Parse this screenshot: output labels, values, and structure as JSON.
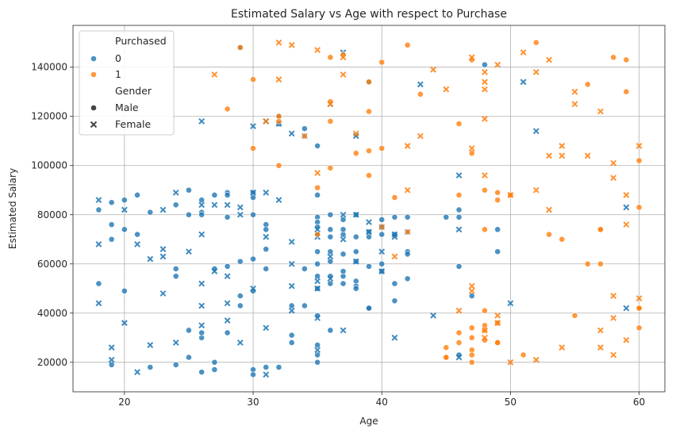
{
  "chart_data": {
    "type": "scatter",
    "title": "Estimated Salary vs Age with respect to Purchase",
    "xlabel": "Age",
    "ylabel": "Estimated Salary",
    "xlim": [
      16,
      62
    ],
    "ylim": [
      8000,
      157000
    ],
    "x_ticks": [
      20,
      30,
      40,
      50,
      60
    ],
    "y_ticks": [
      20000,
      40000,
      60000,
      80000,
      100000,
      120000,
      140000
    ],
    "grid": true,
    "legend_position": "top-left",
    "legend": {
      "hue_title": "Purchased",
      "hue_labels": [
        "0",
        "1"
      ],
      "style_title": "Gender",
      "style_labels": [
        "Male",
        "Female"
      ]
    },
    "colors": {
      "0": "#1f77b4",
      "1": "#ff7f0e"
    },
    "series": [
      {
        "name": "0",
        "marker": "o",
        "x": [
          18,
          18,
          19,
          19,
          19,
          19,
          20,
          20,
          20,
          21,
          21,
          22,
          22,
          24,
          24,
          24,
          24,
          25,
          25,
          25,
          25,
          26,
          26,
          26,
          26,
          26,
          26,
          27,
          27,
          27,
          27,
          28,
          28,
          28,
          28,
          28,
          29,
          29,
          29,
          29,
          30,
          30,
          30,
          30,
          30,
          30,
          30,
          31,
          31,
          31,
          31,
          31,
          32,
          32,
          32,
          33,
          33,
          33,
          34,
          34,
          34,
          35,
          35,
          35,
          35,
          35,
          35,
          35,
          35,
          35,
          35,
          35,
          35,
          35,
          35,
          36,
          36,
          36,
          36,
          36,
          36,
          36,
          36,
          37,
          37,
          37,
          37,
          37,
          37,
          37,
          38,
          38,
          38,
          38,
          38,
          38,
          38,
          39,
          39,
          39,
          39,
          39,
          39,
          40,
          40,
          40,
          40,
          40,
          41,
          41,
          41,
          41,
          42,
          42,
          42,
          42,
          45,
          46,
          46,
          46,
          46,
          47,
          48,
          49,
          49
        ],
        "y": [
          52000,
          82000,
          85000,
          70000,
          76000,
          19000,
          86000,
          74000,
          49000,
          72000,
          88000,
          18000,
          81000,
          58000,
          55000,
          84000,
          19000,
          90000,
          80000,
          33000,
          22000,
          86000,
          81000,
          80000,
          30000,
          16000,
          32000,
          88000,
          17000,
          20000,
          58000,
          89000,
          88000,
          79000,
          59000,
          32000,
          148000,
          61000,
          47000,
          43000,
          89000,
          87000,
          80000,
          62000,
          49000,
          17000,
          15000,
          76000,
          74000,
          66000,
          58000,
          18000,
          117000,
          120000,
          18000,
          43000,
          31000,
          28000,
          115000,
          58000,
          43000,
          108000,
          88000,
          79000,
          77000,
          75000,
          72000,
          65000,
          60000,
          55000,
          50000,
          39000,
          27000,
          23000,
          20000,
          71000,
          65000,
          61000,
          55000,
          52000,
          33000,
          74000,
          80000,
          78000,
          72000,
          74000,
          64000,
          55000,
          52000,
          57000,
          80000,
          71000,
          65000,
          61000,
          53000,
          51000,
          50000,
          134000,
          73000,
          71000,
          59000,
          42000,
          42000,
          78000,
          75000,
          72000,
          57000,
          60000,
          79000,
          72000,
          52000,
          45000,
          79000,
          65000,
          64000,
          54000,
          79000,
          82000,
          79000,
          59000,
          23000,
          47000,
          141000,
          74000,
          65000
        ]
      },
      {
        "name": "0",
        "marker": "x",
        "x": [
          18,
          18,
          18,
          19,
          19,
          20,
          20,
          21,
          21,
          22,
          22,
          23,
          23,
          23,
          23,
          24,
          24,
          25,
          26,
          26,
          26,
          26,
          26,
          26,
          27,
          27,
          28,
          28,
          28,
          28,
          29,
          29,
          29,
          30,
          30,
          30,
          31,
          31,
          31,
          31,
          31,
          32,
          32,
          33,
          33,
          33,
          33,
          33,
          34,
          35,
          35,
          35,
          35,
          35,
          35,
          36,
          36,
          36,
          37,
          37,
          37,
          37,
          38,
          38,
          38,
          39,
          39,
          40,
          40,
          41,
          41,
          41,
          42,
          43,
          44,
          46,
          46,
          46,
          50,
          51,
          52,
          59,
          59
        ],
        "y": [
          86000,
          68000,
          44000,
          26000,
          21000,
          82000,
          36000,
          68000,
          16000,
          62000,
          27000,
          82000,
          66000,
          63000,
          48000,
          28000,
          89000,
          65000,
          118000,
          84000,
          72000,
          52000,
          43000,
          35000,
          84000,
          57000,
          84000,
          55000,
          44000,
          37000,
          83000,
          28000,
          80000,
          116000,
          89000,
          50000,
          118000,
          89000,
          71000,
          34000,
          15000,
          86000,
          117000,
          113000,
          69000,
          60000,
          51000,
          41000,
          112000,
          74000,
          53000,
          71000,
          50000,
          38000,
          25000,
          125000,
          63000,
          54000,
          146000,
          80000,
          70000,
          33000,
          80000,
          112000,
          61000,
          73000,
          77000,
          65000,
          57000,
          71000,
          72000,
          30000,
          73000,
          133000,
          39000,
          96000,
          74000,
          22000,
          44000,
          134000,
          114000,
          83000,
          42000
        ]
      },
      {
        "name": "1",
        "marker": "o",
        "x": [
          28,
          29,
          30,
          30,
          32,
          32,
          32,
          34,
          35,
          35,
          36,
          36,
          36,
          36,
          37,
          38,
          39,
          39,
          39,
          39,
          40,
          40,
          41,
          42,
          42,
          43,
          45,
          45,
          45,
          46,
          46,
          46,
          46,
          47,
          47,
          47,
          47,
          47,
          47,
          47,
          48,
          48,
          48,
          48,
          48,
          48,
          49,
          49,
          49,
          49,
          49,
          50,
          51,
          52,
          53,
          54,
          55,
          56,
          56,
          57,
          57,
          57,
          58,
          59,
          59,
          60,
          60,
          60,
          60,
          60
        ],
        "y": [
          123000,
          148000,
          135000,
          107000,
          120000,
          118000,
          100000,
          112000,
          91000,
          72000,
          144000,
          126000,
          118000,
          99000,
          145000,
          105000,
          134000,
          122000,
          106000,
          96000,
          107000,
          142000,
          87000,
          149000,
          73000,
          129000,
          26000,
          22000,
          22000,
          117000,
          88000,
          32000,
          28000,
          143000,
          105000,
          34000,
          30000,
          25000,
          23000,
          20000,
          90000,
          74000,
          41000,
          33000,
          29000,
          35000,
          89000,
          86000,
          36000,
          28000,
          28000,
          88000,
          23000,
          150000,
          72000,
          70000,
          39000,
          133000,
          60000,
          74000,
          74000,
          60000,
          144000,
          143000,
          130000,
          102000,
          83000,
          42000,
          42000,
          34000
        ]
      },
      {
        "name": "1",
        "marker": "x",
        "x": [
          27,
          31,
          32,
          32,
          33,
          35,
          35,
          36,
          37,
          37,
          38,
          40,
          41,
          42,
          42,
          43,
          44,
          45,
          46,
          47,
          47,
          47,
          47,
          48,
          48,
          48,
          48,
          48,
          48,
          48,
          49,
          49,
          49,
          50,
          50,
          51,
          52,
          52,
          52,
          53,
          53,
          53,
          54,
          54,
          54,
          55,
          55,
          56,
          57,
          57,
          57,
          58,
          58,
          58,
          58,
          58,
          59,
          59,
          59,
          60,
          60
        ],
        "y": [
          137000,
          118000,
          150000,
          135000,
          149000,
          147000,
          97000,
          125000,
          137000,
          144000,
          113000,
          75000,
          63000,
          108000,
          90000,
          112000,
          139000,
          131000,
          41000,
          144000,
          107000,
          51000,
          49000,
          138000,
          134000,
          131000,
          119000,
          96000,
          33000,
          30000,
          141000,
          39000,
          36000,
          88000,
          20000,
          146000,
          138000,
          90000,
          21000,
          143000,
          104000,
          82000,
          108000,
          104000,
          26000,
          130000,
          125000,
          104000,
          122000,
          33000,
          26000,
          101000,
          95000,
          47000,
          38000,
          23000,
          88000,
          76000,
          29000,
          108000,
          46000
        ]
      }
    ]
  }
}
